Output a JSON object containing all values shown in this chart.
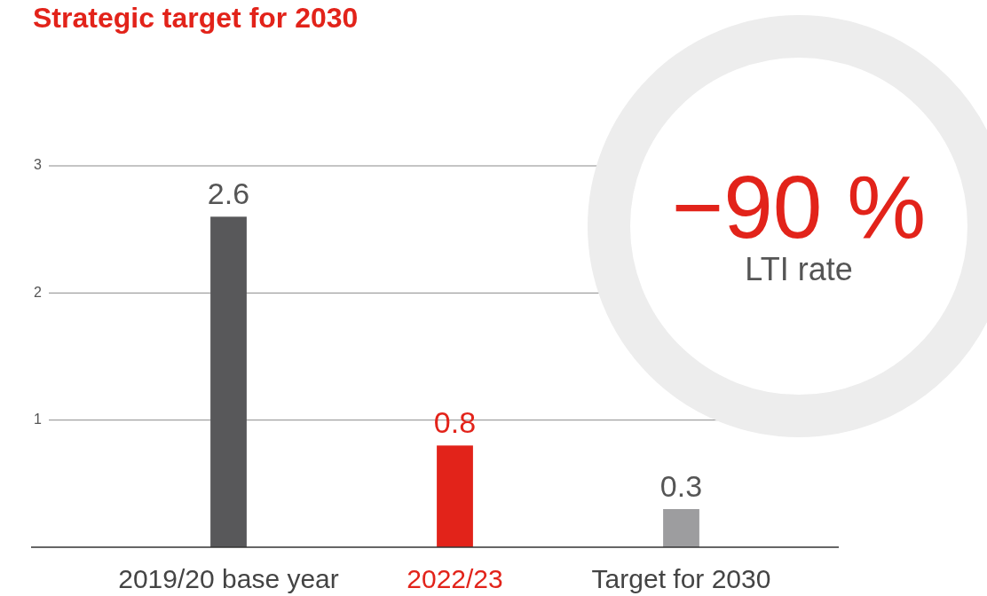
{
  "chart_data": {
    "type": "bar",
    "title": "Strategic target for 2030",
    "categories": [
      "2019/20 base year",
      "2022/23",
      "Target for 2030"
    ],
    "values": [
      2.6,
      0.8,
      0.3
    ],
    "colors": [
      "#58585a",
      "#e2231a",
      "#9d9d9f"
    ],
    "ylim": [
      0,
      3
    ],
    "yticks": [
      1,
      2,
      3
    ],
    "grid": "y",
    "data_labels": true,
    "annotations": [
      "−90 %",
      "LTI rate"
    ]
  }
}
